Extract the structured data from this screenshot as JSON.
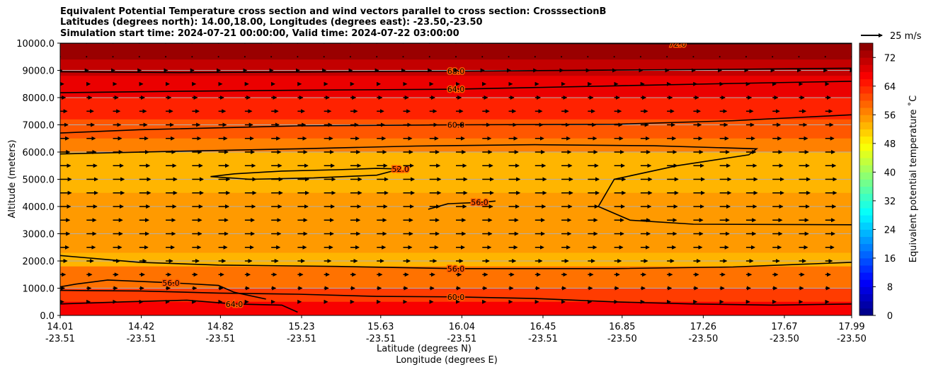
{
  "title": {
    "line1": "Equivalent Potential Temperature cross section and wind vectors parallel to cross section: CrosssectionB",
    "line2": "Latitudes (degrees north): 14.00,18.00, Longitudes (degrees east): -23.50,-23.50",
    "line3": "Simulation start time: 2024-07-21 00:00:00, Valid time: 2024-07-22 03:00:00"
  },
  "chart_data": {
    "type": "heatmap",
    "xlabel_lat": "Latitude (degrees N)",
    "xlabel_lon": "Longitude (degrees E)",
    "ylabel": "Altitude (meters)",
    "ylim": [
      0,
      10000
    ],
    "y_ticks": [
      "0.0",
      "1000.0",
      "2000.0",
      "3000.0",
      "4000.0",
      "5000.0",
      "6000.0",
      "7000.0",
      "8000.0",
      "9000.0",
      "10000.0"
    ],
    "y_tick_values": [
      0,
      1000,
      2000,
      3000,
      4000,
      5000,
      6000,
      7000,
      8000,
      9000,
      10000
    ],
    "x_ticks": [
      {
        "lat": "14.01",
        "lon": "-23.51",
        "frac": 0.0
      },
      {
        "lat": "14.42",
        "lon": "-23.51",
        "frac": 0.1025
      },
      {
        "lat": "14.82",
        "lon": "-23.51",
        "frac": 0.2025
      },
      {
        "lat": "15.23",
        "lon": "-23.51",
        "frac": 0.305
      },
      {
        "lat": "15.63",
        "lon": "-23.51",
        "frac": 0.405
      },
      {
        "lat": "16.04",
        "lon": "-23.51",
        "frac": 0.5075
      },
      {
        "lat": "16.45",
        "lon": "-23.51",
        "frac": 0.61
      },
      {
        "lat": "16.85",
        "lon": "-23.50",
        "frac": 0.71
      },
      {
        "lat": "17.26",
        "lon": "-23.50",
        "frac": 0.8125
      },
      {
        "lat": "17.67",
        "lon": "-23.50",
        "frac": 0.915
      },
      {
        "lat": "17.99",
        "lon": "-23.50",
        "frac": 1.0
      }
    ],
    "colorbar": {
      "label": "Equivalent potential temperature $^\\circ$C",
      "label_display": "Equivalent potential temperature ˚C",
      "range": [
        0,
        76
      ],
      "ticks": [
        "0",
        "8",
        "16",
        "24",
        "32",
        "40",
        "48",
        "56",
        "64",
        "72"
      ],
      "tick_values": [
        0,
        8,
        16,
        24,
        32,
        40,
        48,
        56,
        64,
        72
      ]
    },
    "quiver_key": "25 m/s",
    "layers": [
      {
        "z_bottom": 9400,
        "z_top": 10000,
        "theta_e": 74
      },
      {
        "z_bottom": 8800,
        "z_top": 9400,
        "theta_e": 71
      },
      {
        "z_bottom": 8000,
        "z_top": 8800,
        "theta_e": 68
      },
      {
        "z_bottom": 7200,
        "z_top": 8000,
        "theta_e": 64
      },
      {
        "z_bottom": 6500,
        "z_top": 7200,
        "theta_e": 60
      },
      {
        "z_bottom": 6000,
        "z_top": 6500,
        "theta_e": 57
      },
      {
        "z_bottom": 4500,
        "z_top": 6000,
        "theta_e": 53
      },
      {
        "z_bottom": 2300,
        "z_top": 4500,
        "theta_e": 55
      },
      {
        "z_bottom": 1800,
        "z_top": 2300,
        "theta_e": 53
      },
      {
        "z_bottom": 1000,
        "z_top": 1800,
        "theta_e": 58
      },
      {
        "z_bottom": 500,
        "z_top": 1000,
        "theta_e": 62
      },
      {
        "z_bottom": 0,
        "z_top": 500,
        "theta_e": 67
      }
    ],
    "contours": [
      {
        "label": "72.0",
        "points": [
          [
            0.0,
            10000
          ],
          [
            0.5,
            10000
          ],
          [
            0.78,
            9980
          ],
          [
            1.0,
            9990
          ]
        ]
      },
      {
        "label": "68.0",
        "points": [
          [
            0.0,
            8950
          ],
          [
            0.15,
            8920
          ],
          [
            0.3,
            8940
          ],
          [
            0.5,
            8970
          ],
          [
            0.7,
            9010
          ],
          [
            0.85,
            9040
          ],
          [
            1.0,
            9080
          ]
        ]
      },
      {
        "label": "64.0",
        "points": [
          [
            0.0,
            8180
          ],
          [
            0.15,
            8230
          ],
          [
            0.3,
            8270
          ],
          [
            0.5,
            8310
          ],
          [
            0.7,
            8430
          ],
          [
            0.85,
            8520
          ],
          [
            1.0,
            8600
          ]
        ]
      },
      {
        "label": "60.0",
        "points": [
          [
            0.0,
            6700
          ],
          [
            0.1,
            6820
          ],
          [
            0.3,
            6960
          ],
          [
            0.5,
            7000
          ],
          [
            0.7,
            7020
          ],
          [
            0.85,
            7150
          ],
          [
            1.0,
            7370
          ]
        ]
      },
      {
        "label": "",
        "points": [
          [
            0.0,
            5930
          ],
          [
            0.15,
            6030
          ],
          [
            0.3,
            6120
          ],
          [
            0.45,
            6220
          ],
          [
            0.6,
            6270
          ],
          [
            0.75,
            6230
          ],
          [
            0.88,
            6120
          ],
          [
            0.87,
            5900
          ],
          [
            0.78,
            5500
          ],
          [
            0.7,
            5000
          ],
          [
            0.68,
            4000
          ],
          [
            0.72,
            3500
          ],
          [
            0.8,
            3350
          ],
          [
            1.0,
            3330
          ]
        ]
      },
      {
        "label": "52.0",
        "points": [
          [
            0.19,
            5100
          ],
          [
            0.22,
            5200
          ],
          [
            0.28,
            5300
          ],
          [
            0.35,
            5350
          ],
          [
            0.4,
            5400
          ],
          [
            0.43,
            5380
          ],
          [
            0.4,
            5150
          ],
          [
            0.32,
            5050
          ],
          [
            0.24,
            5000
          ],
          [
            0.19,
            5100
          ]
        ]
      },
      {
        "label": "56.0",
        "points": [
          [
            0.465,
            3900
          ],
          [
            0.49,
            4100
          ],
          [
            0.53,
            4150
          ],
          [
            0.55,
            4200
          ]
        ]
      },
      {
        "label": "56.0",
        "points": [
          [
            0.0,
            2200
          ],
          [
            0.1,
            1950
          ],
          [
            0.2,
            1850
          ],
          [
            0.35,
            1800
          ],
          [
            0.5,
            1720
          ],
          [
            0.7,
            1720
          ],
          [
            0.85,
            1780
          ],
          [
            1.0,
            1950
          ]
        ]
      },
      {
        "label": "60.0",
        "points": [
          [
            0.0,
            920
          ],
          [
            0.1,
            900
          ],
          [
            0.2,
            820
          ],
          [
            0.3,
            780
          ],
          [
            0.4,
            700
          ],
          [
            0.5,
            680
          ],
          [
            0.6,
            620
          ],
          [
            0.7,
            500
          ],
          [
            0.8,
            420
          ],
          [
            0.9,
            380
          ],
          [
            1.0,
            420
          ]
        ]
      },
      {
        "label": "64.0",
        "points": [
          [
            0.0,
            420
          ],
          [
            0.08,
            500
          ],
          [
            0.16,
            560
          ],
          [
            0.22,
            420
          ],
          [
            0.28,
            380
          ],
          [
            0.3,
            120
          ]
        ]
      },
      {
        "label": "56.0",
        "points": [
          [
            0.0,
            1050
          ],
          [
            0.02,
            1150
          ],
          [
            0.06,
            1300
          ],
          [
            0.14,
            1200
          ],
          [
            0.2,
            1100
          ],
          [
            0.22,
            850
          ],
          [
            0.26,
            600
          ]
        ]
      }
    ],
    "wind_levels": [
      500,
      1000,
      1500,
      2000,
      2500,
      3000,
      3500,
      4000,
      4500,
      5000,
      5500,
      6000,
      6500,
      7000,
      7500,
      8000,
      8500,
      9000,
      9500,
      10000
    ],
    "wind_columns": 31,
    "wind_u": [
      4,
      5,
      6,
      8,
      10,
      11,
      11,
      12,
      13,
      13,
      12,
      11,
      10,
      9,
      8,
      6,
      4,
      2,
      1,
      0
    ],
    "wind_w": [
      0,
      0,
      0,
      0,
      0,
      0,
      0,
      0,
      0,
      0,
      0,
      0,
      0,
      0,
      0,
      0,
      0,
      0,
      0,
      0
    ],
    "quiver_key_u": 25
  }
}
